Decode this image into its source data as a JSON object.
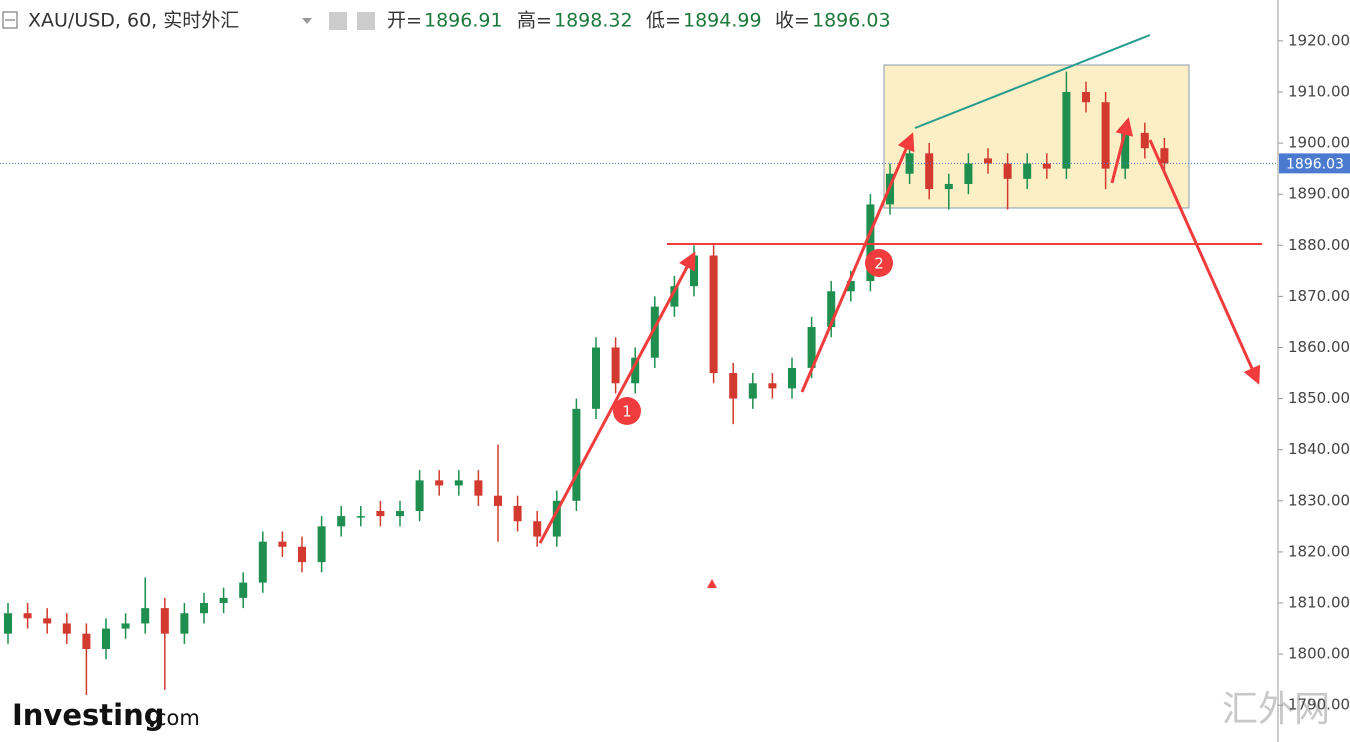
{
  "chart_data": {
    "type": "candlestick",
    "title": "XAU/USD, 60, 实时外汇",
    "ohlc_header": {
      "open_label": "开=",
      "open": 1896.91,
      "high_label": "高=",
      "high": 1898.32,
      "low_label": "低=",
      "low": 1894.99,
      "close_label": "收=",
      "close": 1896.03
    },
    "open": [
      1804,
      1808,
      1807,
      1806,
      1804,
      1801,
      1805,
      1806,
      1809,
      1804,
      1808,
      1810,
      1811,
      1814,
      1822,
      1821,
      1818,
      1825,
      1827,
      1828,
      1827,
      1828,
      1834,
      1833,
      1834,
      1831,
      1829,
      1826,
      1823,
      1830,
      1848,
      1860,
      1853,
      1858,
      1868,
      1872,
      1878,
      1855,
      1850,
      1853,
      1852,
      1856,
      1864,
      1871,
      1873,
      1888,
      1894,
      1898,
      1891,
      1892,
      1897,
      1896,
      1893,
      1896,
      1895,
      1910,
      1908,
      1895,
      1902,
      1899
    ],
    "high": [
      1810,
      1810,
      1809,
      1808,
      1806,
      1807,
      1808,
      1815,
      1811,
      1810,
      1812,
      1813,
      1816,
      1824,
      1824,
      1823,
      1827,
      1829,
      1829,
      1830,
      1830,
      1836,
      1836,
      1836,
      1836,
      1841,
      1831,
      1828,
      1832,
      1850,
      1862,
      1862,
      1860,
      1870,
      1874,
      1880,
      1880,
      1857,
      1855,
      1855,
      1858,
      1866,
      1873,
      1875,
      1890,
      1896,
      1900,
      1900,
      1894,
      1898,
      1899,
      1898,
      1898,
      1898,
      1914,
      1912,
      1910,
      1904,
      1904,
      1901
    ],
    "low": [
      1802,
      1805,
      1804,
      1802,
      1792,
      1799,
      1803,
      1804,
      1793,
      1802,
      1806,
      1808,
      1809,
      1812,
      1819,
      1816,
      1816,
      1823,
      1825,
      1825,
      1825,
      1826,
      1831,
      1831,
      1829,
      1822,
      1824,
      1821,
      1821,
      1828,
      1846,
      1851,
      1851,
      1856,
      1866,
      1870,
      1853,
      1845,
      1848,
      1850,
      1850,
      1854,
      1862,
      1869,
      1871,
      1886,
      1892,
      1889,
      1887,
      1890,
      1894,
      1887,
      1891,
      1893,
      1893,
      1906,
      1891,
      1893,
      1897,
      1894
    ],
    "close": [
      1808,
      1807,
      1806,
      1804,
      1801,
      1805,
      1806,
      1809,
      1804,
      1808,
      1810,
      1811,
      1814,
      1822,
      1821,
      1818,
      1825,
      1827,
      1827,
      1827,
      1828,
      1834,
      1833,
      1834,
      1831,
      1829,
      1826,
      1823,
      1830,
      1848,
      1860,
      1853,
      1858,
      1868,
      1872,
      1878,
      1855,
      1850,
      1853,
      1852,
      1856,
      1864,
      1871,
      1873,
      1888,
      1894,
      1898,
      1891,
      1892,
      1896,
      1896,
      1893,
      1896,
      1895,
      1910,
      1908,
      1895,
      1902,
      1899,
      1896
    ],
    "up_color": "#1e8f4e",
    "down_color": "#d23a2f",
    "last_price": 1896.03,
    "ylim": [
      1782.8,
      1928
    ],
    "yticks": [
      {
        "value": 1790,
        "label": "1790.00"
      },
      {
        "value": 1800,
        "label": "1800.00"
      },
      {
        "value": 1810,
        "label": "1810.00"
      },
      {
        "value": 1820,
        "label": "1820.00"
      },
      {
        "value": 1830,
        "label": "1830.00"
      },
      {
        "value": 1840,
        "label": "1840.00"
      },
      {
        "value": 1850,
        "label": "1850.00"
      },
      {
        "value": 1860,
        "label": "1860.00"
      },
      {
        "value": 1870,
        "label": "1870.00"
      },
      {
        "value": 1880,
        "label": "1880.00"
      },
      {
        "value": 1890,
        "label": "1890.00"
      },
      {
        "value": 1900,
        "label": "1900.00"
      },
      {
        "value": 1910,
        "label": "1910.00"
      },
      {
        "value": 1920,
        "label": "1920.00"
      }
    ],
    "annotations": [
      "1",
      "2"
    ],
    "logo": {
      "brand": "Investing",
      "suffix": "com"
    },
    "watermark": "汇外网"
  }
}
